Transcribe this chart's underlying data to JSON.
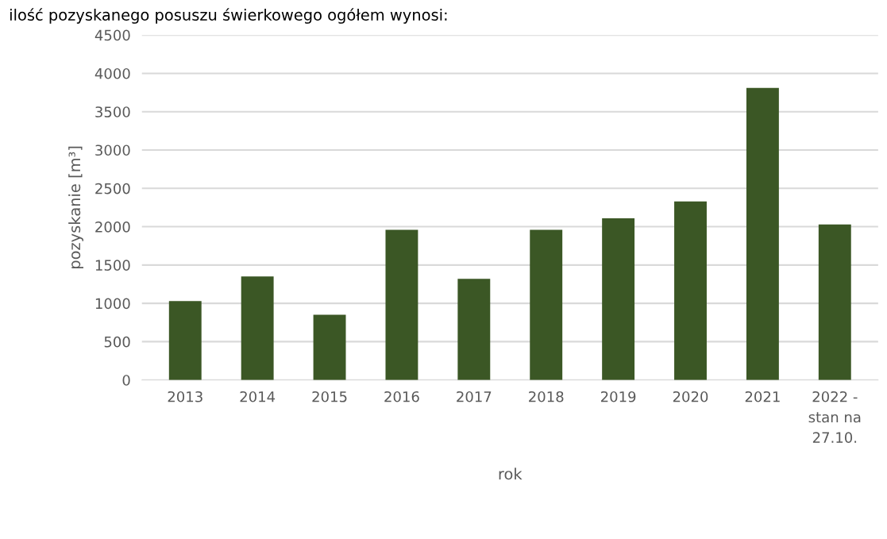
{
  "chart_data": {
    "type": "bar",
    "categories": [
      "2013",
      "2014",
      "2015",
      "2016",
      "2017",
      "2018",
      "2019",
      "2020",
      "2021",
      "2022 -\nstan na\n27.10."
    ],
    "values": [
      1030,
      1350,
      850,
      1960,
      1320,
      1960,
      2110,
      2330,
      3810,
      2030
    ],
    "color": "#3b5725",
    "xlabel": "rok",
    "ylabel": "pozyskanie [m³]",
    "ylim": [
      0,
      4500
    ],
    "yticks": [
      0,
      500,
      1000,
      1500,
      2000,
      2500,
      3000,
      3500,
      4000,
      4500
    ],
    "grid": "y",
    "annotations": [
      "ilość pozyskanego posuszu świerkowego ogółem wynosi:"
    ]
  }
}
